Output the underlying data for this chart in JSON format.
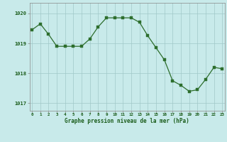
{
  "hours": [
    0,
    1,
    2,
    3,
    4,
    5,
    6,
    7,
    8,
    9,
    10,
    11,
    12,
    13,
    14,
    15,
    16,
    17,
    18,
    19,
    20,
    21,
    22,
    23
  ],
  "pressure": [
    1019.45,
    1019.65,
    1019.3,
    1018.9,
    1018.9,
    1018.9,
    1018.9,
    1019.15,
    1019.55,
    1019.85,
    1019.85,
    1019.85,
    1019.85,
    1019.7,
    1019.25,
    1018.85,
    1018.45,
    1017.75,
    1017.6,
    1017.4,
    1017.45,
    1017.8,
    1018.2,
    1018.15
  ],
  "line_color": "#2d6e2d",
  "marker_color": "#2d6e2d",
  "bg_color": "#c8eaea",
  "grid_color": "#a0c8c8",
  "xlabel": "Graphe pression niveau de la mer (hPa)",
  "xlabel_color": "#1a5c1a",
  "tick_color": "#1a5c1a",
  "ylim_min": 1016.75,
  "ylim_max": 1020.35,
  "yticks": [
    1017,
    1018,
    1019,
    1020
  ],
  "spine_color": "#888888"
}
